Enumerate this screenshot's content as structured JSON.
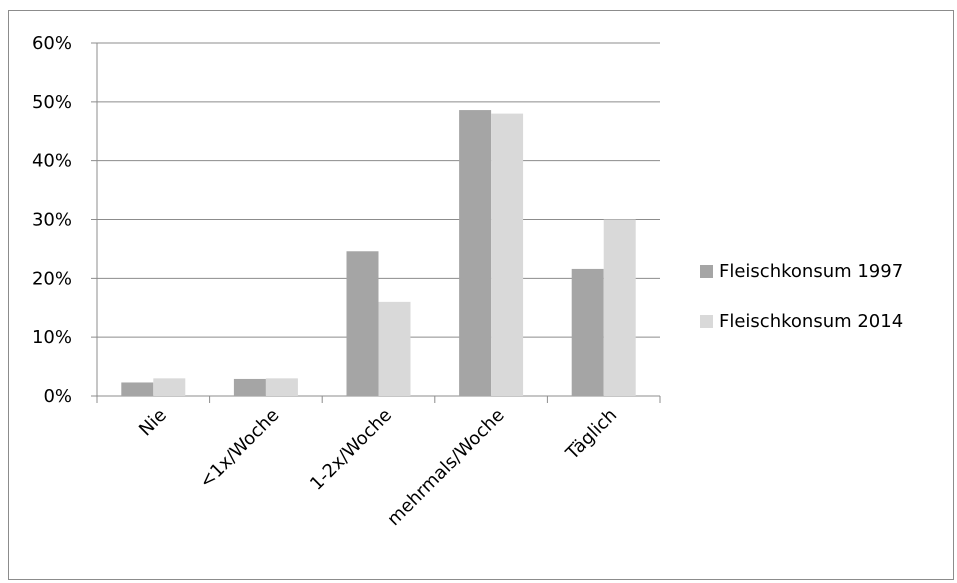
{
  "chart_data": {
    "type": "bar",
    "categories": [
      "Nie",
      "<1x/Woche",
      "1-2x/Woche",
      "mehrmals/Woche",
      "Täglich"
    ],
    "series": [
      {
        "name": "Fleischkonsum 1997",
        "values": [
          2.3,
          2.9,
          24.6,
          48.6,
          21.6
        ],
        "color": "#a5a5a5"
      },
      {
        "name": "Fleischkonsum 2014",
        "values": [
          3.0,
          3.0,
          16.0,
          48.0,
          30.0
        ],
        "color": "#d9d9d9"
      }
    ],
    "title": "",
    "xlabel": "",
    "ylabel": "",
    "ylim": [
      0,
      60
    ],
    "yticks": [
      0,
      10,
      20,
      30,
      40,
      50,
      60
    ],
    "ytick_labels": [
      "0%",
      "10%",
      "20%",
      "30%",
      "40%",
      "50%",
      "60%"
    ],
    "grid": true,
    "legend_position": "right",
    "colors": {
      "gridline": "#8c8c8c",
      "axis": "#8c8c8c"
    }
  }
}
